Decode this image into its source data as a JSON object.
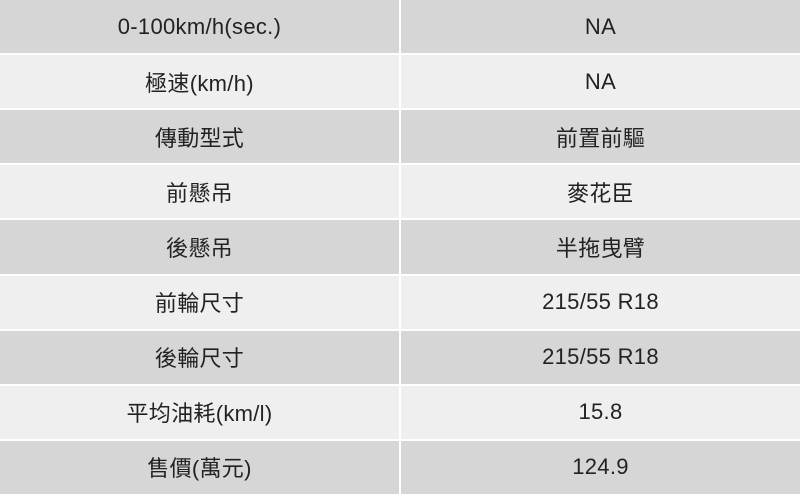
{
  "table": {
    "name": "car-spec-table",
    "columns": [
      "spec-label",
      "spec-value"
    ],
    "rows": [
      {
        "label": "0-100km/h(sec.)",
        "value": "NA"
      },
      {
        "label": "極速(km/h)",
        "value": "NA"
      },
      {
        "label": "傳動型式",
        "value": "前置前驅"
      },
      {
        "label": "前懸吊",
        "value": "麥花臣"
      },
      {
        "label": "後懸吊",
        "value": "半拖曳臂"
      },
      {
        "label": "前輪尺寸",
        "value": "215/55 R18"
      },
      {
        "label": "後輪尺寸",
        "value": "215/55 R18"
      },
      {
        "label": "平均油耗(km/l)",
        "value": "15.8"
      },
      {
        "label": "售價(萬元)",
        "value": "124.9"
      }
    ],
    "colors": {
      "row_odd_bg": "#d6d6d6",
      "row_even_bg": "#efefef",
      "divider": "#ffffff",
      "text": "#222222"
    }
  }
}
